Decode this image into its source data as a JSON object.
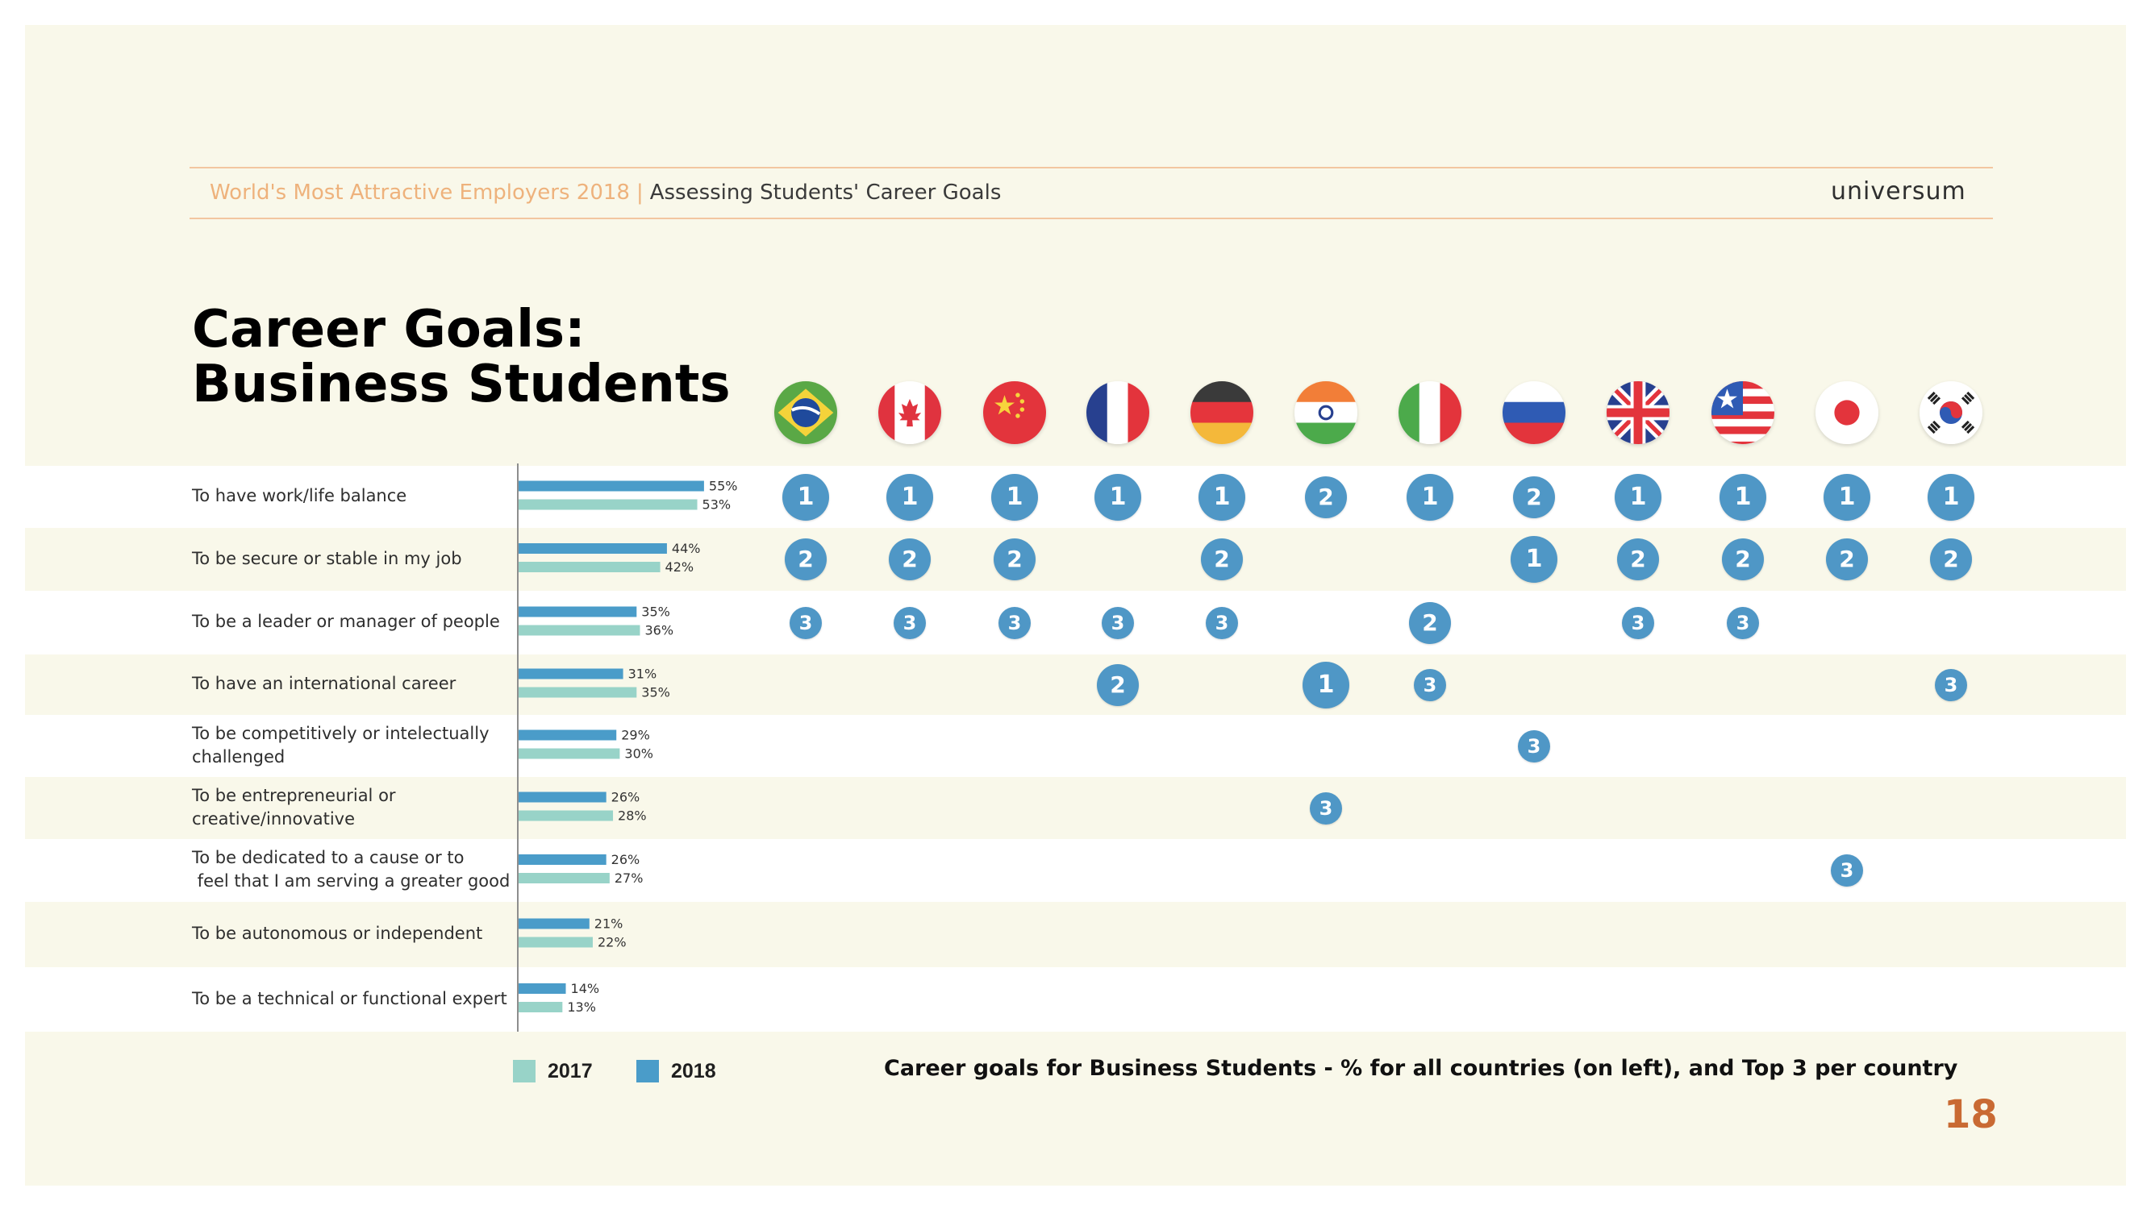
{
  "header": {
    "report": "World's Most Attractive Employers 2018",
    "separator": "|",
    "section": "Assessing Students' Career Goals",
    "brand": "universum"
  },
  "title_line1": "Career Goals:",
  "title_line2": "Business Students",
  "colors": {
    "bar_2018": "#4a9cc9",
    "bar_2017": "#98d3c8",
    "badge": "#4f97c6",
    "slide_bg": "#f9f8ea",
    "accent": "#eeb27c",
    "page_number": "#c96a33"
  },
  "countries": [
    {
      "icon": "flag-brazil-icon"
    },
    {
      "icon": "flag-canada-icon"
    },
    {
      "icon": "flag-china-icon"
    },
    {
      "icon": "flag-france-icon"
    },
    {
      "icon": "flag-germany-icon"
    },
    {
      "icon": "flag-india-icon"
    },
    {
      "icon": "flag-italy-icon"
    },
    {
      "icon": "flag-russia-icon"
    },
    {
      "icon": "flag-uk-icon"
    },
    {
      "icon": "flag-usa-icon"
    },
    {
      "icon": "flag-japan-icon"
    },
    {
      "icon": "flag-south-korea-icon"
    }
  ],
  "chart_data": {
    "type": "bar",
    "orientation": "horizontal",
    "categories": [
      "To have work/life balance",
      "To be secure or stable in my job",
      "To be a leader or manager of people",
      "To have an international career",
      "To be competitively or intelectually challenged",
      "To be entrepreneurial or creative/innovative",
      "To be dedicated to a cause or to feel that I am serving a greater good",
      "To be autonomous or independent",
      "To be a technical or functional expert"
    ],
    "series": [
      {
        "name": "2018",
        "values": [
          55,
          44,
          35,
          31,
          29,
          26,
          26,
          21,
          14
        ],
        "labels": [
          "55%",
          "44%",
          "35%",
          "31%",
          "29%",
          "26%",
          "26%",
          "21%",
          "14%"
        ]
      },
      {
        "name": "2017",
        "values": [
          53,
          42,
          36,
          35,
          30,
          28,
          27,
          22,
          13
        ],
        "labels": [
          "53%",
          "42%",
          "36%",
          "35%",
          "30%",
          "28%",
          "27%",
          "22%",
          "13%"
        ]
      }
    ],
    "legend": {
      "entries": [
        "2017",
        "2018"
      ],
      "position": "bottom"
    },
    "ranks": [
      [
        "1",
        "1",
        "1",
        "1",
        "1",
        "2",
        "1",
        "2",
        "1",
        "1",
        "1",
        "1"
      ],
      [
        "2",
        "2",
        "2",
        "",
        "2",
        "",
        "",
        "1",
        "2",
        "2",
        "2",
        "2"
      ],
      [
        "3",
        "3",
        "3",
        "3",
        "3",
        "",
        "2",
        "",
        "3",
        "3",
        "",
        ""
      ],
      [
        "",
        "",
        "",
        "2",
        "",
        "1",
        "3",
        "",
        "",
        "",
        "",
        "3"
      ],
      [
        "",
        "",
        "",
        "",
        "",
        "",
        "",
        "3",
        "",
        "",
        "",
        ""
      ],
      [
        "",
        "",
        "",
        "",
        "",
        "3",
        "",
        "",
        "",
        "",
        "",
        ""
      ],
      [
        "",
        "",
        "",
        "",
        "",
        "",
        "",
        "",
        "",
        "",
        "3",
        ""
      ],
      [
        "",
        "",
        "",
        "",
        "",
        "",
        "",
        "",
        "",
        "",
        "",
        ""
      ],
      [
        "",
        "",
        "",
        "",
        "",
        "",
        "",
        "",
        "",
        "",
        "",
        ""
      ]
    ],
    "caption": "Career goals for Business Students - % for all countries (on left), and Top 3 per country"
  },
  "row_labels": [
    [
      "To have work/life balance"
    ],
    [
      "To be secure or stable in my job"
    ],
    [
      "To be a leader or manager of people"
    ],
    [
      "To have an international career"
    ],
    [
      "To be competitively or intelectually",
      "challenged"
    ],
    [
      "To be entrepreneurial or",
      "creative/innovative"
    ],
    [
      "To be dedicated to a cause or to",
      " feel that I am serving a greater good"
    ],
    [
      "To be autonomous or independent"
    ],
    [
      "To be a technical or functional expert"
    ]
  ],
  "legend_labels": {
    "y2017": "2017",
    "y2018": "2018"
  },
  "page_number": "18"
}
